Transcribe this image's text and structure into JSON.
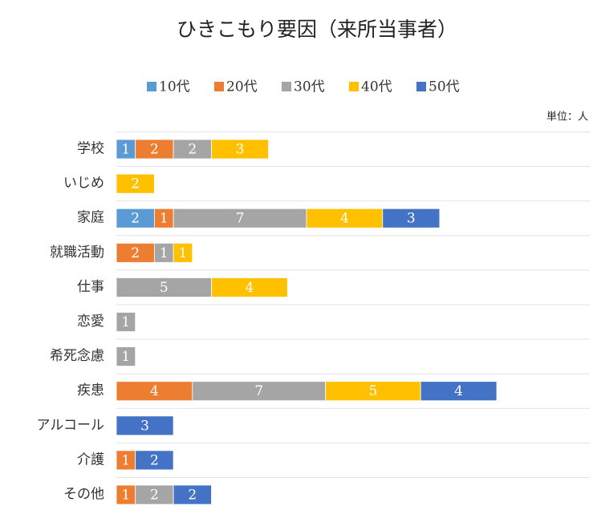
{
  "chart_data": {
    "type": "stacked-bar",
    "orientation": "horizontal",
    "title": "ひきこもり要因（来所当事者）",
    "unit_label": "単位：人",
    "categories": [
      "学校",
      "いじめ",
      "家庭",
      "就職活動",
      "仕事",
      "恋愛",
      "希死念慮",
      "疾患",
      "アルコール",
      "介護",
      "その他"
    ],
    "series": [
      {
        "name": "10代",
        "color": "#5b9bd5",
        "values": [
          1,
          null,
          2,
          null,
          null,
          null,
          null,
          null,
          null,
          null,
          null
        ]
      },
      {
        "name": "20代",
        "color": "#ed7d31",
        "values": [
          2,
          null,
          1,
          2,
          null,
          null,
          null,
          4,
          null,
          1,
          1
        ]
      },
      {
        "name": "30代",
        "color": "#a5a5a5",
        "values": [
          2,
          null,
          7,
          1,
          5,
          1,
          1,
          7,
          null,
          null,
          2
        ]
      },
      {
        "name": "40代",
        "color": "#ffc000",
        "values": [
          3,
          2,
          4,
          1,
          4,
          null,
          null,
          5,
          null,
          null,
          null
        ]
      },
      {
        "name": "50代",
        "color": "#4472c4",
        "values": [
          null,
          null,
          3,
          null,
          null,
          null,
          null,
          4,
          3,
          2,
          2
        ]
      }
    ],
    "legend": "top"
  }
}
